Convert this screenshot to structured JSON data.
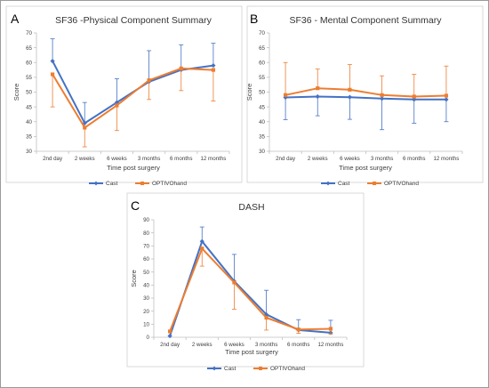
{
  "chart_data": [
    {
      "type": "line",
      "panel_letter": "A",
      "title": "SF36 -Physical Component Summary",
      "xlabel": "Time post surgery",
      "ylabel": "Score",
      "categories": [
        "2nd day",
        "2 weeks",
        "6 weeks",
        "3 months",
        "6 months",
        "12 months"
      ],
      "ylim": [
        30,
        70
      ],
      "yticks": [
        30,
        35,
        40,
        45,
        50,
        55,
        60,
        65,
        70
      ],
      "legend_position": "bottom",
      "grid": false,
      "series": [
        {
          "name": "Cast",
          "color": "#4472C4",
          "values": [
            60.5,
            39.5,
            46.5,
            53.5,
            57.5,
            59
          ],
          "err_upper": [
            7.5,
            7,
            8,
            10.5,
            8.5,
            7.5
          ],
          "err_lower": [
            0,
            0,
            0,
            0,
            0,
            0
          ]
        },
        {
          "name": "OPTIVOhand",
          "color": "#ED7D31",
          "values": [
            56,
            38,
            45.5,
            54,
            58,
            57.5
          ],
          "err_upper": [
            0,
            0,
            0,
            0,
            0,
            0
          ],
          "err_lower": [
            11,
            6.5,
            8.5,
            6.5,
            7.5,
            10.5
          ]
        }
      ]
    },
    {
      "type": "line",
      "panel_letter": "B",
      "title": "SF36 - Mental Component Summary",
      "xlabel": "Time post surgery",
      "ylabel": "Score",
      "categories": [
        "2nd day",
        "2 weeks",
        "6 weeks",
        "3 months",
        "6 months",
        "12 months"
      ],
      "ylim": [
        30,
        70
      ],
      "yticks": [
        30,
        35,
        40,
        45,
        50,
        55,
        60,
        65,
        70
      ],
      "legend_position": "bottom",
      "grid": false,
      "series": [
        {
          "name": "Cast",
          "color": "#4472C4",
          "values": [
            48.2,
            48.5,
            48.3,
            47.8,
            47.5,
            47.5
          ],
          "err_upper": [
            0,
            0,
            0,
            0,
            0,
            0
          ],
          "err_lower": [
            7.5,
            6.5,
            7.5,
            10.5,
            8,
            7.5
          ]
        },
        {
          "name": "OPTIVOhand",
          "color": "#ED7D31",
          "values": [
            49,
            51.3,
            50.8,
            49,
            48.5,
            48.8
          ],
          "err_upper": [
            11,
            6.5,
            8.5,
            6.5,
            7.5,
            10
          ],
          "err_lower": [
            0,
            0,
            0,
            0,
            0,
            0
          ]
        }
      ]
    },
    {
      "type": "line",
      "panel_letter": "C",
      "title": "DASH",
      "xlabel": "Time post surgery",
      "ylabel": "Score",
      "categories": [
        "2nd day",
        "2 weeks",
        "6 weeks",
        "3 months",
        "6 months",
        "12 months"
      ],
      "ylim": [
        0,
        90
      ],
      "yticks": [
        0,
        10,
        20,
        30,
        40,
        50,
        60,
        70,
        80,
        90
      ],
      "legend_position": "bottom",
      "grid": false,
      "series": [
        {
          "name": "Cast",
          "color": "#4472C4",
          "values": [
            1,
            73.5,
            43,
            17.5,
            5.5,
            3.5
          ],
          "err_upper": [
            0,
            11,
            20.5,
            18.5,
            8,
            9.5
          ],
          "err_lower": [
            0,
            0,
            0,
            0,
            0,
            0
          ]
        },
        {
          "name": "OPTIVOhand",
          "color": "#ED7D31",
          "values": [
            4.5,
            68,
            42,
            15,
            6,
            6.5
          ],
          "err_upper": [
            0,
            0,
            0,
            0,
            0,
            0
          ],
          "err_lower": [
            0,
            13.5,
            20.5,
            9.5,
            3,
            4
          ]
        }
      ]
    }
  ]
}
